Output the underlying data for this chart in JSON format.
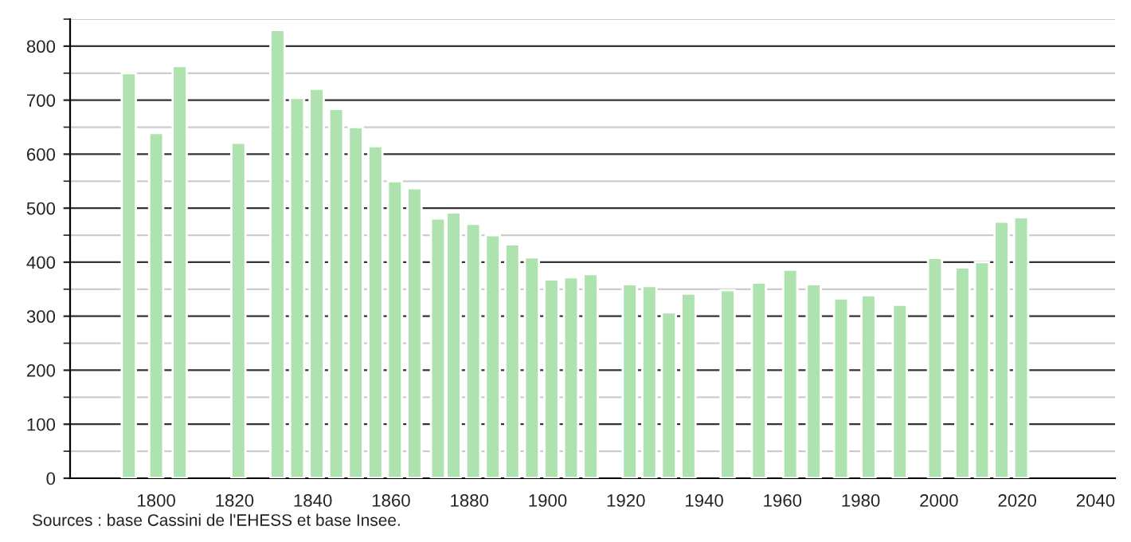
{
  "chart_data": {
    "type": "bar",
    "color": "#aee2ae",
    "x": [
      1793,
      1800,
      1806,
      1821,
      1831,
      1836,
      1841,
      1846,
      1851,
      1856,
      1861,
      1866,
      1872,
      1876,
      1881,
      1886,
      1891,
      1896,
      1901,
      1906,
      1911,
      1921,
      1926,
      1931,
      1936,
      1946,
      1954,
      1962,
      1968,
      1975,
      1982,
      1990,
      1999,
      2006,
      2011,
      2016,
      2021
    ],
    "values": [
      750,
      639,
      763,
      621,
      830,
      704,
      721,
      684,
      650,
      615,
      550,
      537,
      481,
      492,
      471,
      450,
      433,
      409,
      368,
      372,
      378,
      359,
      356,
      307,
      342,
      348,
      362,
      386,
      359,
      333,
      339,
      321,
      408,
      390,
      400,
      475,
      483
    ],
    "xlim": [
      1778,
      2045
    ],
    "xticks": [
      1800,
      1820,
      1840,
      1860,
      1880,
      1900,
      1920,
      1940,
      1960,
      1980,
      2000,
      2020,
      2040
    ],
    "ylim": [
      0,
      850
    ],
    "yticks": [
      0,
      100,
      200,
      300,
      400,
      500,
      600,
      700,
      800
    ],
    "grid": "y",
    "legend": false,
    "annotations": [
      "Sources : base Cassini de l'EHESS et base Insee."
    ]
  }
}
